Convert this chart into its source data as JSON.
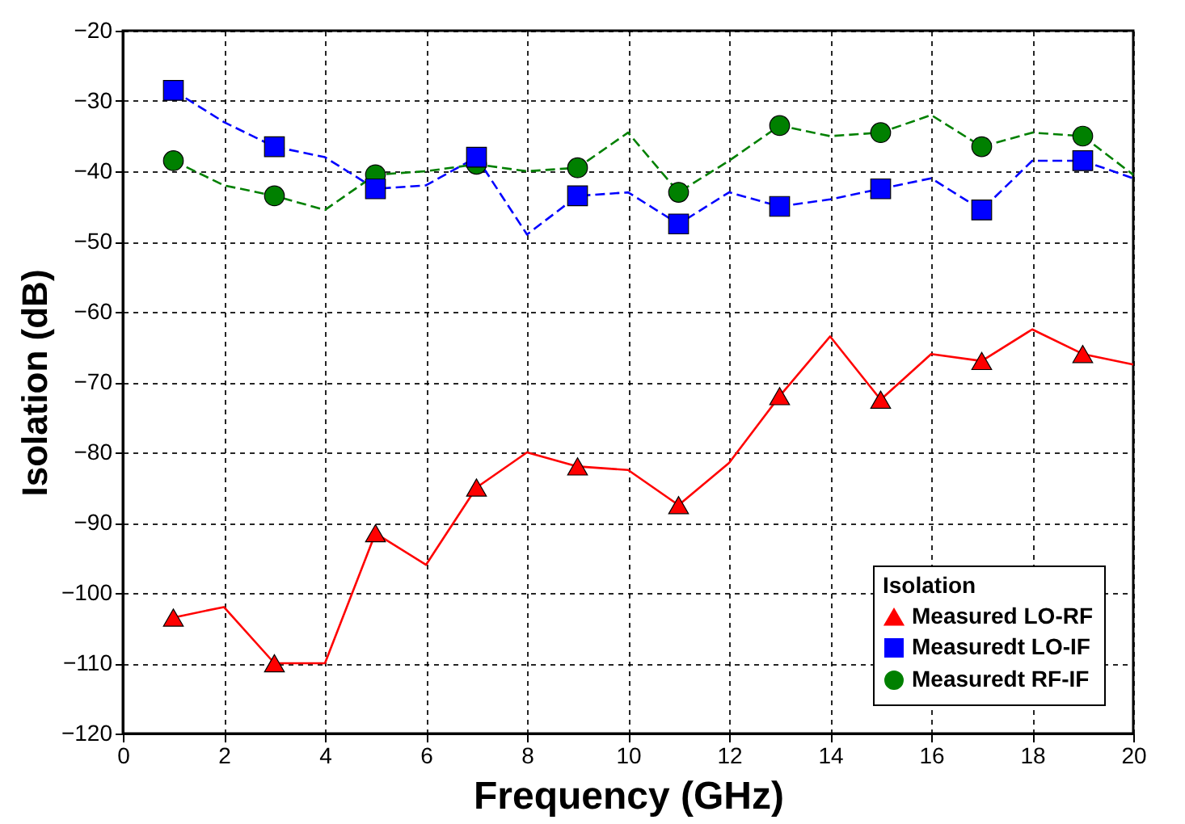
{
  "chart_data": {
    "type": "line",
    "xlabel": "Frequency (GHz)",
    "ylabel": "Isolation (dB)",
    "legend_title": "Isolation",
    "x": [
      1,
      2,
      3,
      4,
      5,
      6,
      7,
      8,
      9,
      10,
      11,
      12,
      13,
      14,
      15,
      16,
      17,
      18,
      19,
      20
    ],
    "series": [
      {
        "name": "Measured LO-RF",
        "color": "#ff0000",
        "marker": "triangle",
        "line_style": "solid",
        "values": [
          -103.5,
          -102,
          -110,
          -110,
          -91.5,
          -96,
          -85,
          -80,
          -82,
          -82.5,
          -87.5,
          -81.5,
          -72,
          -63.5,
          -72.5,
          -66,
          -67,
          -62.5,
          -66,
          -67.5
        ]
      },
      {
        "name": "Measuredt LO-IF",
        "color": "#0000ff",
        "marker": "square",
        "line_style": "dashed",
        "values": [
          -28.5,
          -33,
          -36.5,
          -38,
          -42.5,
          -42,
          -38,
          -49,
          -43.5,
          -43,
          -47.5,
          -43,
          -45,
          -44,
          -42.5,
          -41,
          -45.5,
          -38.5,
          -38.5,
          -41
        ]
      },
      {
        "name": "Measuredt RF-IF",
        "color": "#008000",
        "marker": "circle",
        "line_style": "dashed",
        "values": [
          -38.5,
          -42,
          -43.5,
          -45.5,
          -40.5,
          -40,
          -39,
          -40,
          -39.5,
          -34.5,
          -43,
          -38.5,
          -33.5,
          -35,
          -34.5,
          -32,
          -36.5,
          -34.5,
          -35,
          -40.5
        ]
      }
    ],
    "xlim": [
      0,
      20
    ],
    "xticks": [
      0,
      2,
      4,
      6,
      8,
      10,
      12,
      14,
      16,
      18,
      20
    ],
    "ylim": [
      -120,
      -20
    ],
    "yticks": [
      -120,
      -110,
      -100,
      -90,
      -80,
      -70,
      -60,
      -50,
      -40,
      -30,
      -20
    ],
    "grid": true,
    "legend": "bottom right"
  }
}
